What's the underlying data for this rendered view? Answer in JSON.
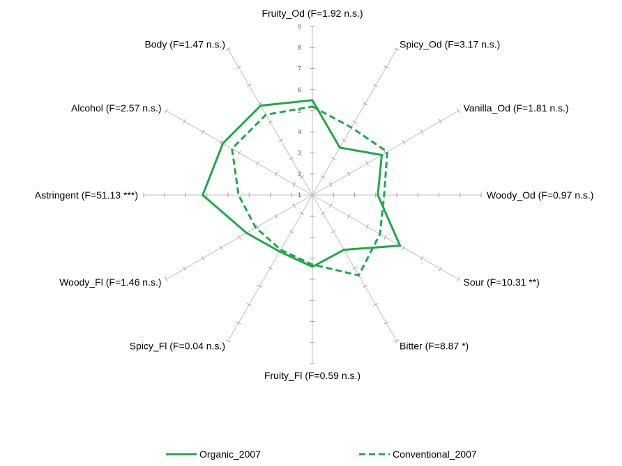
{
  "chart_data": {
    "type": "radar",
    "categories": [
      "Fruity_Od (F=1.92 n.s.)",
      "Spicy_Od (F=3.17 n.s.)",
      "Vanilla_Od (F=1.81 n.s.)",
      "Woody_Od (F=0.97 n.s.)",
      "Sour (F=10.31 **)",
      "Bitter (F=8.87 *)",
      "Fruity_Fl (F=0.59 n.s.)",
      "Spicy_Fl (F=0.04 n.s.)",
      "Woody_Fl (F=1.46 n.s.)",
      "Astringent (F=51.13 ***)",
      "Alcohol (F=2.57 n.s.)",
      "Body (F=1.47 n.s.)"
    ],
    "axis_ticks": [
      "1",
      "2",
      "3",
      "4",
      "5",
      "6",
      "7",
      "8",
      "9"
    ],
    "rmin": 1,
    "rmax": 9,
    "series": [
      {
        "name": "Organic_2007",
        "values": [
          5.5,
          3.6,
          4.8,
          4.1,
          5.8,
          4.0,
          4.4,
          4.1,
          4.6,
          6.2,
          5.9,
          5.9
        ],
        "color": "#22a74a",
        "dash": "solid"
      },
      {
        "name": "Conventional_2007",
        "values": [
          5.2,
          4.7,
          5.1,
          4.4,
          4.7,
          5.4,
          4.3,
          4.0,
          4.1,
          4.5,
          5.4,
          5.4
        ],
        "color": "#22a74a",
        "dash": "dashed"
      }
    ],
    "legend_position": "bottom",
    "grid": "spokes-only"
  }
}
